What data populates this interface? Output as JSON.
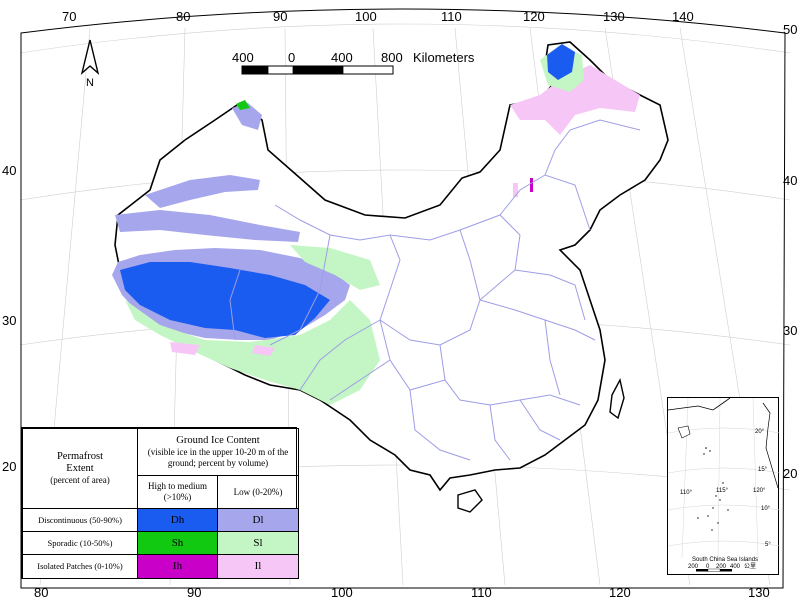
{
  "map": {
    "top_lon_labels": [
      "70",
      "80",
      "90",
      "100",
      "110",
      "120",
      "130",
      "140"
    ],
    "bottom_lon_labels": [
      "80",
      "90",
      "100",
      "110",
      "120",
      "130"
    ],
    "left_lat_labels": [
      "40",
      "30",
      "20"
    ],
    "right_lat_labels": [
      "50",
      "40",
      "30",
      "20"
    ],
    "north_label": "N",
    "scale": {
      "labels": [
        "400",
        "0",
        "400",
        "800"
      ],
      "unit": "Kilometers"
    }
  },
  "legend": {
    "corner_title_lines": [
      "Permafrost",
      "Extent",
      "(percent of area)"
    ],
    "ground_ice_title": "Ground Ice Content",
    "ground_ice_sub": "(visible ice in the upper 10-20 m of the ground; percent by volume)",
    "col_high": "High to medium (>10%)",
    "col_low": "Low (0-20%)",
    "rows": [
      {
        "label": "Discontinuous (50-90%)",
        "high_code": "Dh",
        "low_code": "Dl",
        "high_color": "#1a5cf0",
        "low_color": "#a6a6ec"
      },
      {
        "label": "Sporadic (10-50%)",
        "high_code": "Sh",
        "low_code": "Sl",
        "high_color": "#12c912",
        "low_color": "#c4f5c4"
      },
      {
        "label": "Isolated Patches (0-10%)",
        "high_code": "Ih",
        "low_code": "Il",
        "high_color": "#c800c8",
        "low_color": "#f6c6f6"
      }
    ]
  },
  "inset": {
    "caption": "South China Sea Islands",
    "lon_labels": [
      "110°",
      "115°",
      "120°"
    ],
    "lat_labels": [
      "20°",
      "15°",
      "10°",
      "5°"
    ],
    "scale_labels": [
      "200",
      "0",
      "200",
      "400",
      "公里"
    ]
  }
}
